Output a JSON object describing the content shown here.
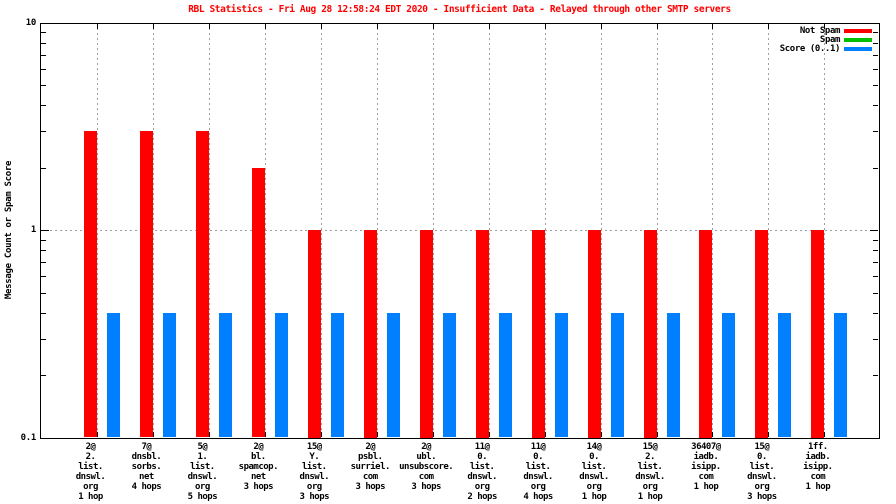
{
  "chart_data": {
    "type": "bar",
    "title": "RBL Statistics - Fri Aug 28 12:58:24 EDT 2020 - Insufficient Data - Relayed through other SMTP servers",
    "ylabel": "Message Count or Spam Score",
    "xlabel": "",
    "yscale": "log",
    "ylim": [
      0.1,
      10
    ],
    "yticks": [
      0.1,
      1,
      10
    ],
    "ytick_labels": [
      "0.1",
      "1",
      "10"
    ],
    "grid": true,
    "legend_position": "top-right",
    "categories": [
      [
        "2@",
        "2.",
        "list.",
        "dnswl.",
        "org",
        "1 hop"
      ],
      [
        "7@",
        "dnsbl.",
        "sorbs.",
        "net",
        "4 hops"
      ],
      [
        "5@",
        "1.",
        "list.",
        "dnswl.",
        "org",
        "5 hops"
      ],
      [
        "2@",
        "bl.",
        "spamcop.",
        "net",
        "3 hops"
      ],
      [
        "15@",
        "Y.",
        "list.",
        "dnswl.",
        "org",
        "3 hops"
      ],
      [
        "2@",
        "psbl.",
        "surriel.",
        "com",
        "3 hops"
      ],
      [
        "2@",
        "ubl.",
        "unsubscore.",
        "com",
        "3 hops"
      ],
      [
        "11@",
        "0.",
        "list.",
        "dnswl.",
        "org",
        "2 hops"
      ],
      [
        "11@",
        "0.",
        "list.",
        "dnswl.",
        "org",
        "4 hops"
      ],
      [
        "14@",
        "0.",
        "list.",
        "dnswl.",
        "org",
        "1 hop"
      ],
      [
        "15@",
        "2.",
        "list.",
        "dnswl.",
        "org",
        "1 hop"
      ],
      [
        "36407@",
        "iadb.",
        "isipp.",
        "com",
        "1 hop"
      ],
      [
        "15@",
        "0.",
        "list.",
        "dnswl.",
        "org",
        "3 hops"
      ],
      [
        "1ff.",
        "iadb.",
        "isipp.",
        "com",
        "1 hop"
      ]
    ],
    "series": [
      {
        "name": "Not Spam",
        "color": "#ff0000",
        "values": [
          3,
          3,
          3,
          2,
          1,
          1,
          1,
          1,
          1,
          1,
          1,
          1,
          1,
          1
        ]
      },
      {
        "name": "Spam",
        "color": "#00c000",
        "values": [
          0,
          0,
          0,
          0,
          0,
          0,
          0,
          0,
          0,
          0,
          0,
          0,
          0,
          0
        ]
      },
      {
        "name": "Score (0..1)",
        "color": "#0080ff",
        "values": [
          0.4,
          0.4,
          0.4,
          0.4,
          0.4,
          0.4,
          0.4,
          0.4,
          0.4,
          0.4,
          0.4,
          0.4,
          0.4,
          0.4
        ]
      }
    ]
  },
  "colors": {
    "background": "#ffffff",
    "title": "#ff0000",
    "axis": "#000000",
    "grid": "#9e9e9e",
    "text": "#000000",
    "not_spam": "#ff0000",
    "spam": "#00c000",
    "score": "#0080ff"
  }
}
